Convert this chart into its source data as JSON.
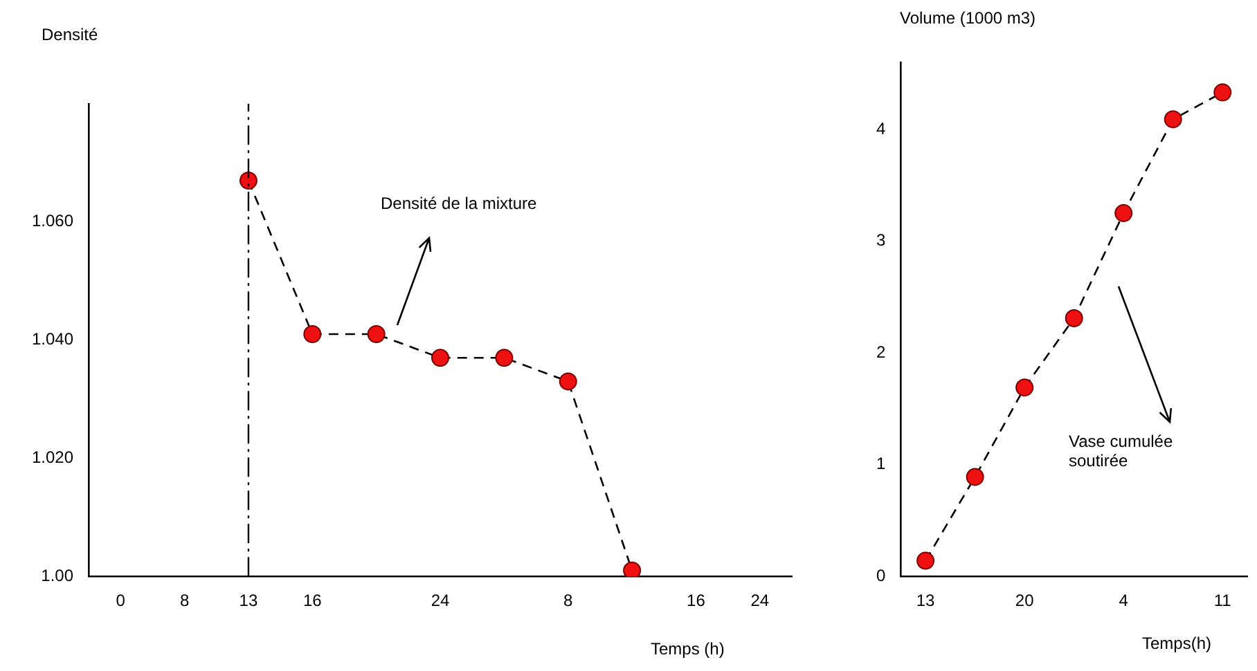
{
  "chart_data": [
    {
      "type": "line",
      "ylabel": "Densité",
      "xlabel": "Temps (h)",
      "annotations": [
        "Densité de la mixture"
      ],
      "categories": [
        "0",
        "8",
        "13",
        "16",
        null,
        "24",
        null,
        "8",
        null,
        "16",
        "24"
      ],
      "series": [
        {
          "color": "#ee1111",
          "values": [
            null,
            null,
            1.067,
            1.041,
            1.041,
            1.037,
            1.037,
            1.033,
            1.001,
            null,
            null
          ]
        }
      ],
      "ylim": [
        1.0,
        1.08
      ],
      "yticks": [
        {
          "value": 1.0,
          "label": "1.00"
        },
        {
          "value": 1.02,
          "label": "1.020"
        },
        {
          "value": 1.04,
          "label": "1.040"
        },
        {
          "value": 1.06,
          "label": "1.060"
        }
      ],
      "ref_lines": [
        {
          "axis": "x",
          "value": "13",
          "line_style": "dashed"
        }
      ],
      "marker": "circle",
      "line_style": "dashed",
      "grid": false,
      "legend": false
    },
    {
      "type": "line",
      "ylabel": "Volume (1000 m3)",
      "xlabel": "Temps(h)",
      "annotations": [
        "Vase cumulée soutirée"
      ],
      "categories": [
        "13",
        null,
        "20",
        null,
        "4",
        null,
        "11"
      ],
      "series": [
        {
          "color": "#ee1111",
          "values": [
            0.14,
            0.89,
            1.69,
            2.31,
            3.25,
            4.09,
            4.33
          ]
        }
      ],
      "ylim": [
        0,
        4.6
      ],
      "yticks": [
        0,
        1,
        2,
        3,
        4
      ],
      "marker": "circle",
      "line_style": "dashed",
      "grid": false,
      "legend": false
    }
  ]
}
